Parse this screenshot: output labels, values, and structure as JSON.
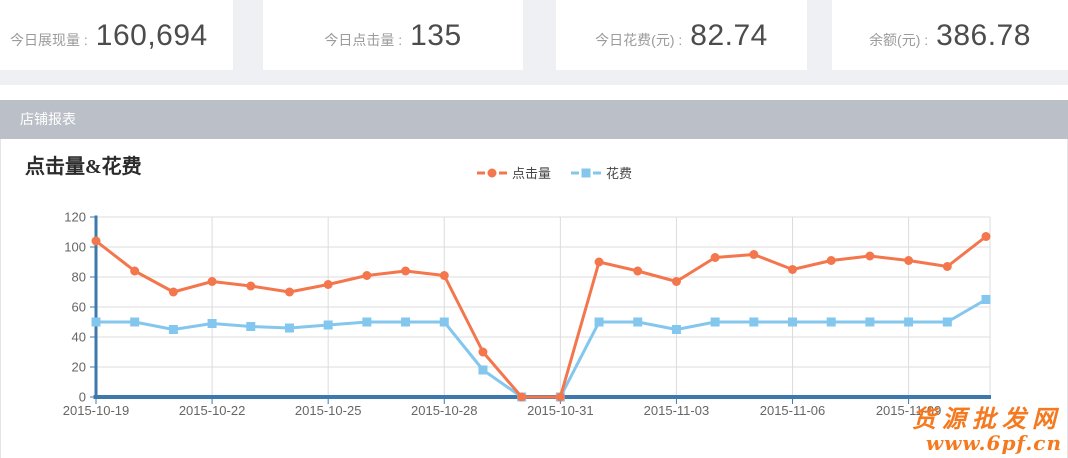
{
  "cards": [
    {
      "label": "今日展现量 :",
      "value": "160,694"
    },
    {
      "label": "今日点击量 :",
      "value": "135"
    },
    {
      "label": "今日花费(元) :",
      "value": "82.74"
    },
    {
      "label": "余额(元) :",
      "value": "386.78"
    }
  ],
  "section_header": {
    "title": "店铺报表"
  },
  "chart": {
    "title": "点击量&花费"
  },
  "chart_data": {
    "type": "line",
    "title": "点击量&花费",
    "x": [
      "2015-10-19",
      "2015-10-20",
      "2015-10-21",
      "2015-10-22",
      "2015-10-23",
      "2015-10-24",
      "2015-10-25",
      "2015-10-26",
      "2015-10-27",
      "2015-10-28",
      "2015-10-29",
      "2015-10-30",
      "2015-10-31",
      "2015-11-01",
      "2015-11-02",
      "2015-11-03",
      "2015-11-04",
      "2015-11-05",
      "2015-11-06",
      "2015-11-07",
      "2015-11-08",
      "2015-11-09",
      "2015-11-10",
      "2015-11-11"
    ],
    "x_label_every": 3,
    "x_tick_labels": [
      "2015-10-19",
      "2015-10-22",
      "2015-10-25",
      "2015-10-28",
      "2015-10-31",
      "2015-11-03",
      "2015-11-06",
      "2015-11-09"
    ],
    "series": [
      {
        "name": "点击量",
        "marker": "circle",
        "color": "#f3764d",
        "values": [
          104,
          84,
          70,
          77,
          74,
          70,
          75,
          81,
          84,
          81,
          30,
          0,
          0,
          90,
          84,
          77,
          93,
          95,
          85,
          91,
          94,
          91,
          87,
          107
        ]
      },
      {
        "name": "花费",
        "marker": "square",
        "color": "#84c7ee",
        "values": [
          50,
          50,
          45,
          49,
          47,
          46,
          48,
          50,
          50,
          50,
          18,
          0,
          0,
          50,
          50,
          45,
          50,
          50,
          50,
          50,
          50,
          50,
          50,
          65
        ]
      }
    ],
    "ylim": [
      0,
      120
    ],
    "ytick_step": 20,
    "grid": true,
    "legend_position": "top-center",
    "axis_color": "#3d79ac",
    "grid_color": "#dcdcdc"
  },
  "watermark": {
    "line1": "货源批发网",
    "line2": "www.6pf.cn",
    "color": "#f5791e"
  }
}
